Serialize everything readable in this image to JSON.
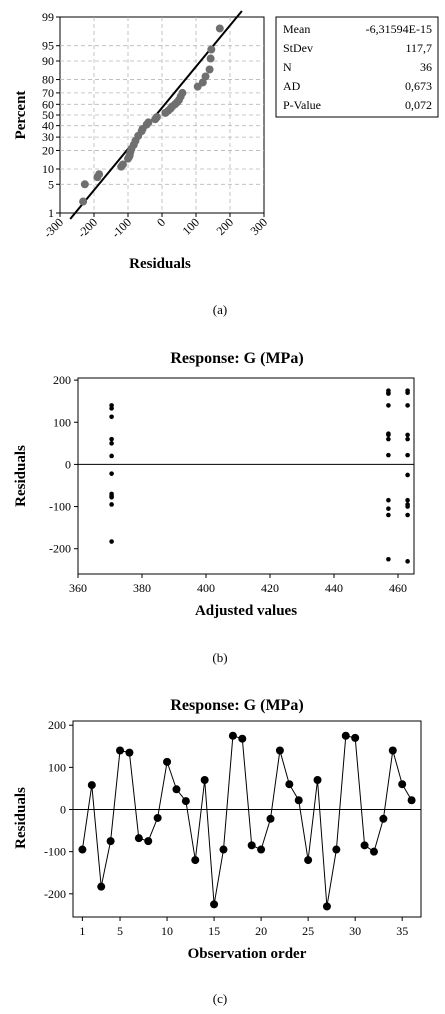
{
  "chart_data": [
    {
      "type": "scatter",
      "caption": "(a)",
      "xlabel": "Residuals",
      "ylabel": "Percent",
      "xlim": [
        -300,
        300
      ],
      "xticks": [
        -300,
        -200,
        -100,
        0,
        100,
        200,
        300
      ],
      "xtick_labels": [
        "-300",
        "-200",
        "-100",
        "0",
        "100",
        "200",
        "300"
      ],
      "yscale": "normal-probability",
      "yticks": [
        1,
        5,
        10,
        20,
        30,
        40,
        50,
        60,
        70,
        80,
        90,
        95,
        99
      ],
      "ytick_labels": [
        "1",
        "5",
        "10",
        "20",
        "30",
        "40",
        "50",
        "60",
        "70",
        "80",
        "90",
        "95",
        "99"
      ],
      "grid": true,
      "fit_line": {
        "x": [
          -270,
          235
        ],
        "y": [
          1,
          99
        ]
      },
      "points": {
        "x": [
          -232,
          -227,
          -190,
          -185,
          -120,
          -115,
          -100,
          -97,
          -95,
          -93,
          -90,
          -83,
          -78,
          -70,
          -60,
          -57,
          -45,
          -40,
          -20,
          -15,
          10,
          18,
          25,
          30,
          38,
          45,
          50,
          55,
          60,
          105,
          120,
          128,
          140,
          143,
          145,
          170
        ],
        "y": [
          2,
          5,
          7,
          8,
          11,
          12,
          15,
          16,
          17,
          19,
          21,
          24,
          27,
          31,
          35,
          37,
          41,
          43,
          46,
          48,
          52,
          54,
          56,
          58,
          60,
          62,
          64,
          67,
          70,
          75,
          78,
          82,
          86,
          91,
          94,
          98
        ]
      },
      "stats": [
        {
          "label": "Mean",
          "value": "-6,31594E-15"
        },
        {
          "label": "StDev",
          "value": "117,7"
        },
        {
          "label": "N",
          "value": "36"
        },
        {
          "label": "AD",
          "value": "0,673"
        },
        {
          "label": "P-Value",
          "value": "0,072"
        }
      ]
    },
    {
      "type": "scatter",
      "caption": "(b)",
      "title": "Response: G (MPa)",
      "xlabel": "Adjusted values",
      "ylabel": "Residuals",
      "xlim": [
        360,
        465
      ],
      "ylim": [
        -260,
        205
      ],
      "xticks": [
        360,
        380,
        400,
        420,
        440,
        460
      ],
      "yticks": [
        -200,
        -100,
        0,
        100,
        200
      ],
      "zero_line": true,
      "points": {
        "x": [
          370.5,
          370.5,
          370.5,
          370.5,
          370.5,
          370.5,
          370.5,
          370.5,
          370.5,
          370.5,
          370.5,
          370.5,
          457,
          457,
          457,
          457,
          457,
          457,
          457,
          457,
          457,
          457,
          457,
          457,
          463,
          463,
          463,
          463,
          463,
          463,
          463,
          463,
          463,
          463,
          463,
          463
        ],
        "y": [
          140,
          133,
          113,
          60,
          50,
          20,
          -22,
          -70,
          -78,
          -95,
          -183,
          -75,
          175,
          168,
          140,
          73,
          60,
          22,
          -85,
          -105,
          -120,
          -225,
          70,
          170,
          175,
          170,
          140,
          70,
          60,
          22,
          -25,
          -85,
          -100,
          -120,
          -230,
          -95
        ]
      }
    },
    {
      "type": "line",
      "caption": "(c)",
      "title": "Response: G (MPa)",
      "xlabel": "Observation order",
      "ylabel": "Residuals",
      "xlim": [
        0,
        37
      ],
      "ylim": [
        -255,
        210
      ],
      "xticks": [
        1,
        5,
        10,
        15,
        20,
        25,
        30,
        35
      ],
      "yticks": [
        -200,
        -100,
        0,
        100,
        200
      ],
      "zero_line": true,
      "x": [
        1,
        2,
        3,
        4,
        5,
        6,
        7,
        8,
        9,
        10,
        11,
        12,
        13,
        14,
        15,
        16,
        17,
        18,
        19,
        20,
        21,
        22,
        23,
        24,
        25,
        26,
        27,
        28,
        29,
        30,
        31,
        32,
        33,
        34,
        35,
        36
      ],
      "y": [
        -95,
        58,
        -183,
        -75,
        140,
        135,
        -68,
        -75,
        -20,
        113,
        48,
        20,
        -120,
        70,
        -225,
        -95,
        175,
        168,
        -85,
        -95,
        -22,
        140,
        60,
        22,
        -120,
        70,
        -230,
        -95,
        175,
        170,
        -85,
        -100,
        -22,
        140,
        60,
        22
      ]
    }
  ]
}
